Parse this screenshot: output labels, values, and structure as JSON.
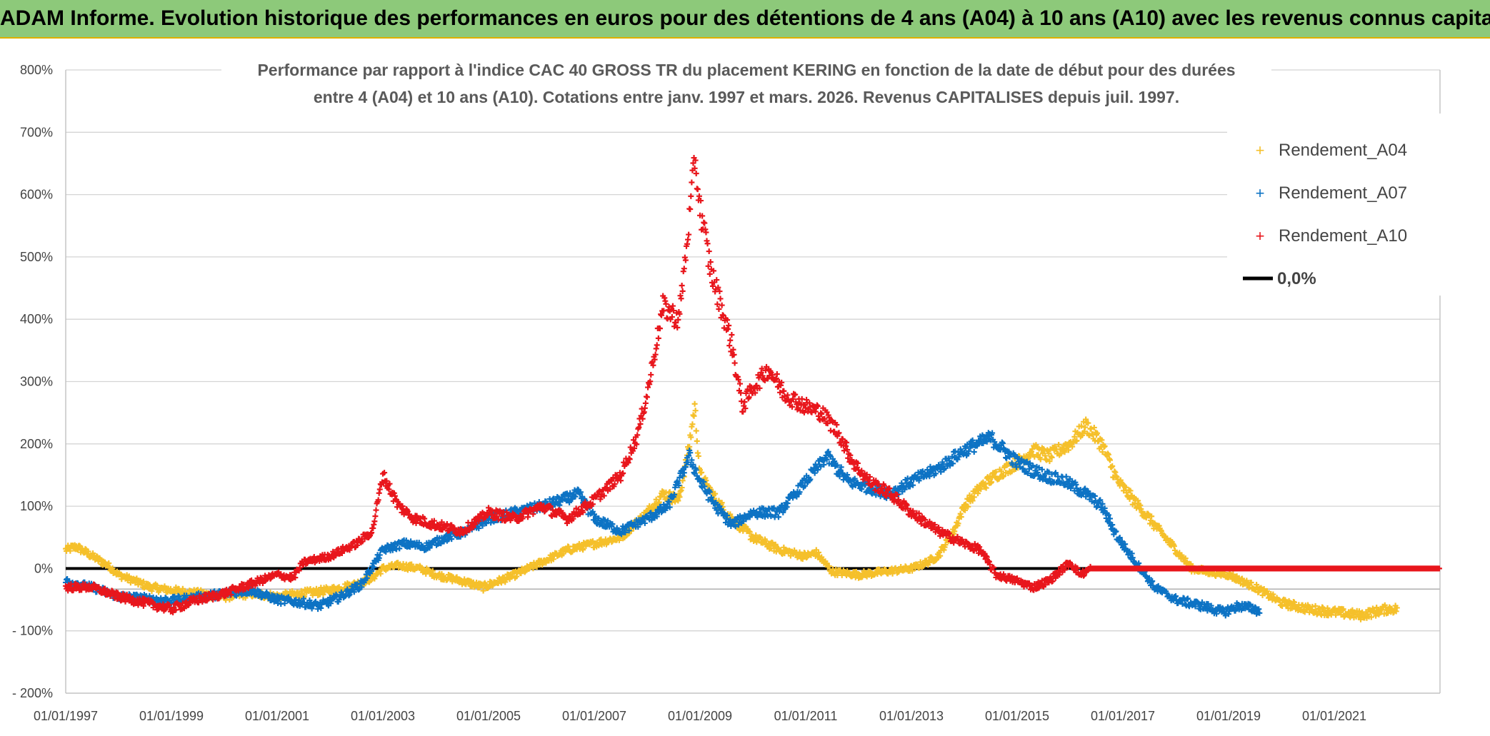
{
  "banner": "ADAM Informe. Evolution historique des performances en euros pour des détentions de 4 ans (A04) à 10 ans (A10) avec les revenus connus capitalisés",
  "colors": {
    "A04": "#f5c02b",
    "A07": "#0d73c4",
    "A10": "#e8161c",
    "zero": "#000000",
    "banner": "#8dc97a"
  },
  "chart_data": {
    "type": "scatter",
    "title_line1": "Performance par rapport à l'indice CAC 40 GROSS TR  du placement KERING en fonction de la date de début pour des durées",
    "title_line2": "entre 4 (A04) et 10 ans (A10). Cotations entre janv. 1997 et mars. 2026. Revenus CAPITALISES depuis juil. 1997.",
    "xlim": [
      1997.0,
      2023.0
    ],
    "ylim": [
      -200,
      800
    ],
    "y_ticks": [
      -200,
      -100,
      0,
      100,
      200,
      300,
      400,
      500,
      600,
      700,
      800
    ],
    "y_tick_labels": [
      "- 200%",
      "- 100%",
      "0%",
      "100%",
      "200%",
      "300%",
      "400%",
      "500%",
      "600%",
      "700%",
      "800%"
    ],
    "x_ticks": [
      1997,
      1999,
      2001,
      2003,
      2005,
      2007,
      2009,
      2011,
      2013,
      2015,
      2017,
      2019,
      2021
    ],
    "x_tick_labels": [
      "01/01/1997",
      "01/01/1999",
      "01/01/2001",
      "01/01/2003",
      "01/01/2005",
      "01/01/2007",
      "01/01/2009",
      "01/01/2011",
      "01/01/2013",
      "01/01/2015",
      "01/01/2017",
      "01/01/2019",
      "01/01/2021"
    ],
    "legend": [
      "Rendement_A04",
      "Rendement_A07",
      "Rendement_A10",
      "0,0%"
    ],
    "series": [
      {
        "name": "Rendement_A04",
        "color": "#f5c02b",
        "points": [
          [
            1997.0,
            30
          ],
          [
            1997.2,
            35
          ],
          [
            1997.5,
            20
          ],
          [
            1997.8,
            5
          ],
          [
            1998.0,
            -10
          ],
          [
            1998.3,
            -20
          ],
          [
            1998.6,
            -30
          ],
          [
            1999.0,
            -35
          ],
          [
            1999.5,
            -40
          ],
          [
            2000.0,
            -45
          ],
          [
            2000.5,
            -40
          ],
          [
            2001.0,
            -45
          ],
          [
            2001.5,
            -40
          ],
          [
            2002.0,
            -35
          ],
          [
            2002.5,
            -25
          ],
          [
            2002.8,
            -15
          ],
          [
            2003.0,
            0
          ],
          [
            2003.3,
            5
          ],
          [
            2003.7,
            0
          ],
          [
            2004.0,
            -10
          ],
          [
            2004.5,
            -20
          ],
          [
            2004.9,
            -30
          ],
          [
            2005.2,
            -20
          ],
          [
            2005.5,
            -10
          ],
          [
            2006.0,
            10
          ],
          [
            2006.5,
            30
          ],
          [
            2007.0,
            40
          ],
          [
            2007.5,
            50
          ],
          [
            2008.0,
            90
          ],
          [
            2008.3,
            120
          ],
          [
            2008.6,
            110
          ],
          [
            2008.8,
            200
          ],
          [
            2008.9,
            260
          ],
          [
            2009.0,
            150
          ],
          [
            2009.3,
            110
          ],
          [
            2009.6,
            80
          ],
          [
            2010.0,
            50
          ],
          [
            2010.5,
            30
          ],
          [
            2011.0,
            20
          ],
          [
            2011.2,
            25
          ],
          [
            2011.5,
            -5
          ],
          [
            2012.0,
            -10
          ],
          [
            2012.5,
            -5
          ],
          [
            2013.0,
            0
          ],
          [
            2013.3,
            10
          ],
          [
            2013.5,
            20
          ],
          [
            2013.8,
            60
          ],
          [
            2014.0,
            100
          ],
          [
            2014.3,
            130
          ],
          [
            2014.6,
            150
          ],
          [
            2015.0,
            170
          ],
          [
            2015.3,
            190
          ],
          [
            2015.6,
            180
          ],
          [
            2016.0,
            200
          ],
          [
            2016.3,
            230
          ],
          [
            2016.6,
            200
          ],
          [
            2016.9,
            140
          ],
          [
            2017.2,
            110
          ],
          [
            2017.6,
            70
          ],
          [
            2018.0,
            30
          ],
          [
            2018.3,
            0
          ],
          [
            2018.6,
            -5
          ],
          [
            2019.0,
            -10
          ],
          [
            2019.5,
            -30
          ],
          [
            2020.0,
            -55
          ],
          [
            2020.5,
            -65
          ],
          [
            2021.0,
            -70
          ],
          [
            2021.5,
            -75
          ],
          [
            2022.0,
            -65
          ],
          [
            2022.2,
            -65
          ]
        ]
      },
      {
        "name": "Rendement_A07",
        "color": "#0d73c4",
        "points": [
          [
            1997.0,
            -20
          ],
          [
            1997.5,
            -30
          ],
          [
            1998.0,
            -45
          ],
          [
            1998.5,
            -48
          ],
          [
            1999.0,
            -52
          ],
          [
            1999.5,
            -46
          ],
          [
            2000.0,
            -40
          ],
          [
            2000.5,
            -35
          ],
          [
            2001.0,
            -50
          ],
          [
            2001.5,
            -55
          ],
          [
            2001.8,
            -60
          ],
          [
            2002.2,
            -45
          ],
          [
            2002.6,
            -25
          ],
          [
            2003.0,
            30
          ],
          [
            2003.4,
            40
          ],
          [
            2003.8,
            35
          ],
          [
            2004.2,
            50
          ],
          [
            2004.6,
            60
          ],
          [
            2005.0,
            80
          ],
          [
            2005.5,
            90
          ],
          [
            2006.0,
            100
          ],
          [
            2006.4,
            110
          ],
          [
            2006.7,
            120
          ],
          [
            2007.0,
            80
          ],
          [
            2007.5,
            60
          ],
          [
            2008.0,
            80
          ],
          [
            2008.4,
            100
          ],
          [
            2008.8,
            180
          ],
          [
            2009.0,
            140
          ],
          [
            2009.3,
            100
          ],
          [
            2009.6,
            70
          ],
          [
            2010.0,
            90
          ],
          [
            2010.5,
            90
          ],
          [
            2011.0,
            140
          ],
          [
            2011.4,
            180
          ],
          [
            2011.8,
            140
          ],
          [
            2012.2,
            130
          ],
          [
            2012.6,
            120
          ],
          [
            2013.0,
            140
          ],
          [
            2013.5,
            160
          ],
          [
            2014.0,
            190
          ],
          [
            2014.5,
            210
          ],
          [
            2015.0,
            170
          ],
          [
            2015.5,
            150
          ],
          [
            2015.9,
            140
          ],
          [
            2016.3,
            120
          ],
          [
            2016.6,
            100
          ],
          [
            2016.9,
            50
          ],
          [
            2017.2,
            15
          ],
          [
            2017.6,
            -30
          ],
          [
            2018.0,
            -50
          ],
          [
            2018.5,
            -60
          ],
          [
            2018.9,
            -70
          ],
          [
            2019.2,
            -60
          ],
          [
            2019.5,
            -65
          ],
          [
            2019.6,
            -70
          ]
        ]
      },
      {
        "name": "Rendement_A10",
        "color": "#e8161c",
        "points": [
          [
            1997.0,
            -30
          ],
          [
            1997.5,
            -30
          ],
          [
            1998.0,
            -45
          ],
          [
            1998.5,
            -55
          ],
          [
            1999.0,
            -65
          ],
          [
            1999.5,
            -50
          ],
          [
            2000.0,
            -40
          ],
          [
            2000.5,
            -25
          ],
          [
            2001.0,
            -10
          ],
          [
            2001.3,
            -15
          ],
          [
            2001.5,
            10
          ],
          [
            2002.0,
            20
          ],
          [
            2002.5,
            40
          ],
          [
            2002.8,
            60
          ],
          [
            2003.0,
            150
          ],
          [
            2003.3,
            100
          ],
          [
            2003.6,
            80
          ],
          [
            2004.0,
            70
          ],
          [
            2004.5,
            60
          ],
          [
            2005.0,
            90
          ],
          [
            2005.5,
            80
          ],
          [
            2006.0,
            100
          ],
          [
            2006.5,
            80
          ],
          [
            2007.0,
            110
          ],
          [
            2007.5,
            150
          ],
          [
            2007.8,
            210
          ],
          [
            2008.0,
            280
          ],
          [
            2008.3,
            420
          ],
          [
            2008.6,
            400
          ],
          [
            2008.8,
            560
          ],
          [
            2008.9,
            660
          ],
          [
            2009.0,
            580
          ],
          [
            2009.2,
            480
          ],
          [
            2009.4,
            420
          ],
          [
            2009.6,
            360
          ],
          [
            2009.8,
            260
          ],
          [
            2010.0,
            290
          ],
          [
            2010.3,
            320
          ],
          [
            2010.6,
            280
          ],
          [
            2011.0,
            260
          ],
          [
            2011.3,
            250
          ],
          [
            2011.6,
            220
          ],
          [
            2011.9,
            170
          ],
          [
            2012.2,
            140
          ],
          [
            2012.6,
            120
          ],
          [
            2013.0,
            90
          ],
          [
            2013.5,
            60
          ],
          [
            2014.0,
            40
          ],
          [
            2014.3,
            30
          ],
          [
            2014.6,
            -10
          ],
          [
            2015.0,
            -20
          ],
          [
            2015.3,
            -30
          ],
          [
            2015.6,
            -20
          ],
          [
            2016.0,
            10
          ],
          [
            2016.2,
            -10
          ],
          [
            2016.4,
            0
          ],
          [
            2017.0,
            0
          ],
          [
            2018.0,
            0
          ],
          [
            2019.0,
            0
          ],
          [
            2020.0,
            0
          ],
          [
            2021.0,
            0
          ],
          [
            2022.0,
            0
          ],
          [
            2023.0,
            0
          ]
        ]
      }
    ]
  }
}
